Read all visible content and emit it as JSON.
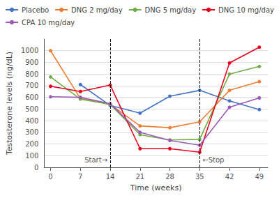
{
  "chart_data": {
    "type": "line",
    "x": [
      0,
      7,
      14,
      21,
      28,
      35,
      42,
      49
    ],
    "series": [
      {
        "name": "Placebo",
        "color": "#4472C4",
        "marker": "circle",
        "values": [
          null,
          710,
          530,
          465,
          610,
          660,
          570,
          495
        ]
      },
      {
        "name": "DNG 2 mg/day",
        "color": "#ED7D31",
        "marker": "circle",
        "values": [
          1000,
          590,
          540,
          355,
          340,
          390,
          660,
          735
        ]
      },
      {
        "name": "DNG 5 mg/day",
        "color": "#70AD47",
        "marker": "circle",
        "values": [
          775,
          585,
          540,
          280,
          235,
          240,
          800,
          865
        ]
      },
      {
        "name": "DNG 10 mg/day",
        "color": "#E8001C",
        "marker": "circle",
        "values": [
          695,
          650,
          705,
          160,
          160,
          130,
          895,
          1030
        ]
      },
      {
        "name": "CPA 10 mg/day",
        "color": "#9B59B6",
        "marker": "circle",
        "values": [
          605,
          600,
          545,
          300,
          230,
          190,
          515,
          595
        ]
      }
    ],
    "xlabel": "Time (weeks)",
    "ylabel": "Testosterone levels (ng/dL)",
    "xlim": [
      -1.5,
      51
    ],
    "ylim": [
      0,
      1100
    ],
    "xticks": [
      0,
      7,
      14,
      21,
      28,
      35,
      42,
      49
    ],
    "yticks": [
      0,
      100,
      200,
      300,
      400,
      500,
      600,
      700,
      800,
      900,
      1000
    ],
    "grid": "y",
    "legend": "top",
    "vlines": [
      14,
      35
    ],
    "annotations": [
      {
        "text": "Start→",
        "x": 14,
        "y": 60
      },
      {
        "text": "←Stop",
        "x": 35,
        "y": 60
      }
    ]
  }
}
